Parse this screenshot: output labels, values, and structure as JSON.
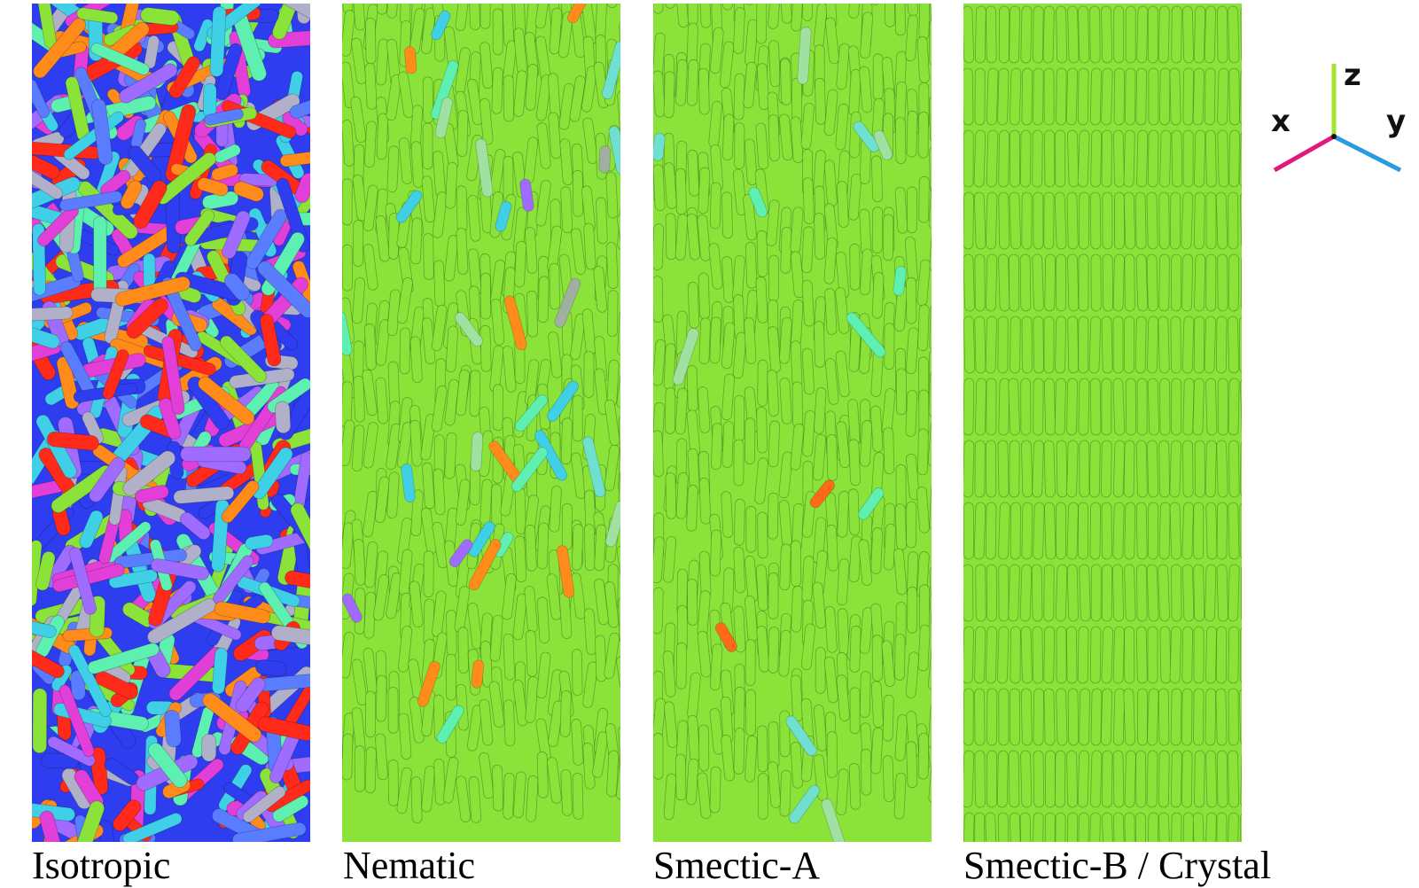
{
  "panels": [
    {
      "id": "isotropic",
      "label": "Isotropic"
    },
    {
      "id": "nematic",
      "label": "Nematic"
    },
    {
      "id": "smectic_a",
      "label": "Smectic-A"
    },
    {
      "id": "smectic_b",
      "label": "Smectic-B / Crystal"
    }
  ],
  "axes": {
    "x_label": "x",
    "y_label": "y",
    "z_label": "z",
    "x_color": "#e0197a",
    "y_color": "#2a9be0",
    "z_color": "#a6e22e"
  },
  "colors": {
    "ordered_green": "#8be33a",
    "isotropic_palette": [
      "#2e3df0",
      "#8be33a",
      "#ff2a1a",
      "#e23fd9",
      "#3fd0e8",
      "#a06bff",
      "#ff8c1a",
      "#5ef0b0",
      "#b0b0c8",
      "#5a7dff"
    ]
  }
}
